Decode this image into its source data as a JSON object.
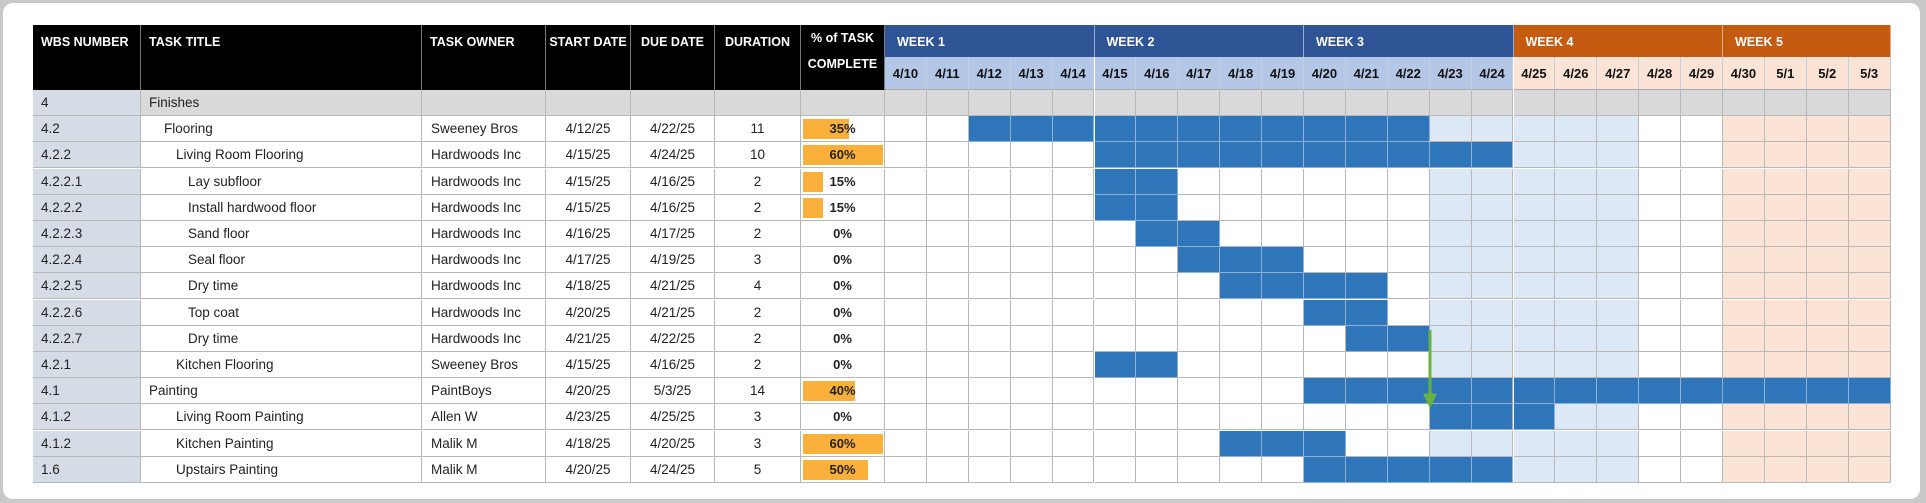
{
  "header": {
    "columns": [
      {
        "key": "wbs",
        "label": "WBS NUMBER"
      },
      {
        "key": "title",
        "label": "TASK TITLE"
      },
      {
        "key": "owner",
        "label": "TASK OWNER"
      },
      {
        "key": "start",
        "label": "START DATE"
      },
      {
        "key": "due",
        "label": "DUE DATE"
      },
      {
        "key": "duration",
        "label": "DURATION"
      },
      {
        "key": "pct",
        "label_line1": "% of TASK",
        "label_line2": "COMPLETE"
      }
    ],
    "weeks": [
      {
        "label": "WEEK 1",
        "color": "#2f5597",
        "days": 5
      },
      {
        "label": "WEEK 2",
        "color": "#2f5597",
        "days": 5
      },
      {
        "label": "WEEK 3",
        "color": "#2f5597",
        "days": 5
      },
      {
        "label": "WEEK 4",
        "color": "#c55a11",
        "days": 5
      },
      {
        "label": "WEEK 5",
        "color": "#c55a11",
        "days": 4
      }
    ],
    "days": [
      "4/10",
      "4/11",
      "4/12",
      "4/13",
      "4/14",
      "4/15",
      "4/16",
      "4/17",
      "4/18",
      "4/19",
      "4/20",
      "4/21",
      "4/22",
      "4/23",
      "4/24",
      "4/25",
      "4/26",
      "4/27",
      "4/28",
      "4/29",
      "4/30",
      "5/1",
      "5/2",
      "5/3"
    ]
  },
  "colors": {
    "header_bg": "#000000",
    "week_blue": "#2f5597",
    "week_orange": "#c55a11",
    "day_blue_bg": "#b4c7e7",
    "day_peach_bg": "#fbe3d6",
    "body_blue_bg": "#dde8f6",
    "body_peach_bg": "#fbe3d6",
    "bar": "#2f75b9",
    "pct_bar": "#fbb03b",
    "arrow": "#6ab23e",
    "group_row": "#d9d9d9",
    "wbs_col": "#d6dce5"
  },
  "tasks": [
    {
      "wbs": "4",
      "title": "Finishes",
      "indent": 0,
      "owner": "",
      "start": "",
      "due": "",
      "duration": "",
      "pct": "",
      "pct_value": 0,
      "bar_start": null,
      "bar_end": null,
      "group": true
    },
    {
      "wbs": "4.2",
      "title": "Flooring",
      "indent": 1,
      "owner": "Sweeney Bros",
      "start": "4/12/25",
      "due": "4/22/25",
      "duration": "11",
      "pct": "35%",
      "pct_value": 35,
      "bar_start": 2,
      "bar_end": 12
    },
    {
      "wbs": "4.2.2",
      "title": "Living Room Flooring",
      "indent": 2,
      "owner": "Hardwoods Inc",
      "start": "4/15/25",
      "due": "4/24/25",
      "duration": "10",
      "pct": "60%",
      "pct_value": 60,
      "bar_start": 5,
      "bar_end": 14
    },
    {
      "wbs": "4.2.2.1",
      "title": "Lay subfloor",
      "indent": 3,
      "owner": "Hardwoods Inc",
      "start": "4/15/25",
      "due": "4/16/25",
      "duration": "2",
      "pct": "15%",
      "pct_value": 15,
      "bar_start": 5,
      "bar_end": 6
    },
    {
      "wbs": "4.2.2.2",
      "title": "Install hardwood floor",
      "indent": 3,
      "owner": "Hardwoods Inc",
      "start": "4/15/25",
      "due": "4/16/25",
      "duration": "2",
      "pct": "15%",
      "pct_value": 15,
      "bar_start": 5,
      "bar_end": 6
    },
    {
      "wbs": "4.2.2.3",
      "title": "Sand floor",
      "indent": 3,
      "owner": "Hardwoods Inc",
      "start": "4/16/25",
      "due": "4/17/25",
      "duration": "2",
      "pct": "0%",
      "pct_value": 0,
      "bar_start": 6,
      "bar_end": 7
    },
    {
      "wbs": "4.2.2.4",
      "title": "Seal floor",
      "indent": 3,
      "owner": "Hardwoods Inc",
      "start": "4/17/25",
      "due": "4/19/25",
      "duration": "3",
      "pct": "0%",
      "pct_value": 0,
      "bar_start": 7,
      "bar_end": 9
    },
    {
      "wbs": "4.2.2.5",
      "title": "Dry time",
      "indent": 3,
      "owner": "Hardwoods Inc",
      "start": "4/18/25",
      "due": "4/21/25",
      "duration": "4",
      "pct": "0%",
      "pct_value": 0,
      "bar_start": 8,
      "bar_end": 11
    },
    {
      "wbs": "4.2.2.6",
      "title": "Top coat",
      "indent": 3,
      "owner": "Hardwoods Inc",
      "start": "4/20/25",
      "due": "4/21/25",
      "duration": "2",
      "pct": "0%",
      "pct_value": 0,
      "bar_start": 10,
      "bar_end": 11
    },
    {
      "wbs": "4.2.2.7",
      "title": "Dry time",
      "indent": 3,
      "owner": "Hardwoods Inc",
      "start": "4/21/25",
      "due": "4/22/25",
      "duration": "2",
      "pct": "0%",
      "pct_value": 0,
      "bar_start": 11,
      "bar_end": 12
    },
    {
      "wbs": "4.2.1",
      "title": "Kitchen Flooring",
      "indent": 2,
      "owner": "Sweeney Bros",
      "start": "4/15/25",
      "due": "4/16/25",
      "duration": "2",
      "pct": "0%",
      "pct_value": 0,
      "bar_start": 5,
      "bar_end": 6
    },
    {
      "wbs": "4.1",
      "title": "Painting",
      "indent": 0,
      "owner": "PaintBoys",
      "start": "4/20/25",
      "due": "5/3/25",
      "duration": "14",
      "pct": "40%",
      "pct_value": 40,
      "bar_start": 10,
      "bar_end": 23
    },
    {
      "wbs": "4.1.2",
      "title": "Living Room Painting",
      "indent": 2,
      "owner": "Allen W",
      "start": "4/23/25",
      "due": "4/25/25",
      "duration": "3",
      "pct": "0%",
      "pct_value": 0,
      "bar_start": 13,
      "bar_end": 15
    },
    {
      "wbs": "4.1.2",
      "title": "Kitchen Painting",
      "indent": 2,
      "owner": "Malik M",
      "start": "4/18/25",
      "due": "4/20/25",
      "duration": "3",
      "pct": "60%",
      "pct_value": 60,
      "bar_start": 8,
      "bar_end": 10
    },
    {
      "wbs": "1.6",
      "title": "Upstairs Painting",
      "indent": 2,
      "owner": "Malik M",
      "start": "4/20/25",
      "due": "4/24/25",
      "duration": "5",
      "pct": "50%",
      "pct_value": 50,
      "bar_start": 10,
      "bar_end": 14
    }
  ],
  "dependency_arrow": {
    "from_task_index": 9,
    "to_task_index": 12,
    "at_day_index": 13
  }
}
